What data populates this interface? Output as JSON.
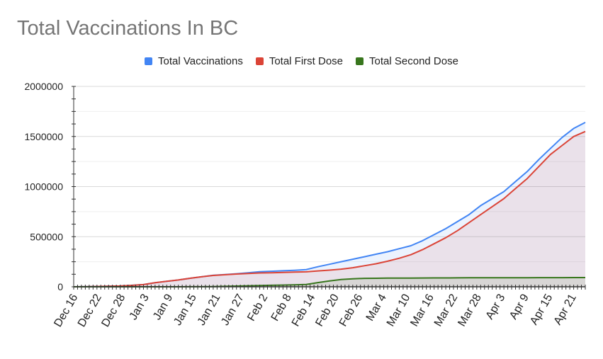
{
  "chart_data": {
    "type": "area",
    "title": "Total Vaccinations In BC",
    "xlabel": "",
    "ylabel": "",
    "ylim": [
      0,
      2000000
    ],
    "yticks": [
      0,
      500000,
      1000000,
      1500000,
      2000000
    ],
    "ytick_labels": [
      "0",
      "500000",
      "1000000",
      "1500000",
      "2000000"
    ],
    "grid": true,
    "legend_position": "top",
    "xtick_labels": [
      "Dec 16",
      "Dec 22",
      "Dec 28",
      "Jan 3",
      "Jan 9",
      "Jan 15",
      "Jan 21",
      "Jan 27",
      "Feb 2",
      "Feb 8",
      "Feb 14",
      "Feb 20",
      "Feb 26",
      "Mar 4",
      "Mar 10",
      "Mar 16",
      "Mar 22",
      "Mar 28",
      "Apr 3",
      "Apr 9",
      "Apr 15",
      "Apr 21"
    ],
    "x": [
      "Dec 16",
      "Dec 19",
      "Dec 22",
      "Dec 25",
      "Dec 28",
      "Dec 31",
      "Jan 3",
      "Jan 6",
      "Jan 9",
      "Jan 12",
      "Jan 15",
      "Jan 18",
      "Jan 21",
      "Jan 24",
      "Jan 27",
      "Jan 30",
      "Feb 2",
      "Feb 5",
      "Feb 8",
      "Feb 11",
      "Feb 14",
      "Feb 17",
      "Feb 20",
      "Feb 23",
      "Feb 26",
      "Mar 1",
      "Mar 4",
      "Mar 7",
      "Mar 10",
      "Mar 13",
      "Mar 16",
      "Mar 19",
      "Mar 22",
      "Mar 25",
      "Mar 28",
      "Mar 31",
      "Apr 3",
      "Apr 6",
      "Apr 9",
      "Apr 12",
      "Apr 15",
      "Apr 18",
      "Apr 21",
      "Apr 24",
      "Apr 26"
    ],
    "series": [
      {
        "name": "Total Vaccinations",
        "color": "#4285f4",
        "values": [
          0,
          1000,
          3000,
          5000,
          8000,
          14000,
          22000,
          40000,
          55000,
          68000,
          85000,
          100000,
          115000,
          122000,
          130000,
          140000,
          150000,
          155000,
          160000,
          165000,
          172000,
          200000,
          225000,
          250000,
          275000,
          300000,
          325000,
          350000,
          380000,
          410000,
          460000,
          520000,
          580000,
          650000,
          720000,
          810000,
          880000,
          950000,
          1050000,
          1150000,
          1270000,
          1380000,
          1490000,
          1580000,
          1640000
        ]
      },
      {
        "name": "Total First Dose",
        "color": "#db4437",
        "values": [
          0,
          1000,
          3000,
          5000,
          8000,
          14000,
          22000,
          40000,
          55000,
          68000,
          85000,
          100000,
          113000,
          120000,
          127000,
          133000,
          138000,
          140000,
          143000,
          146000,
          149000,
          158000,
          166000,
          176000,
          190000,
          210000,
          230000,
          255000,
          285000,
          320000,
          370000,
          430000,
          490000,
          560000,
          640000,
          720000,
          800000,
          880000,
          980000,
          1080000,
          1200000,
          1320000,
          1410000,
          1500000,
          1550000
        ]
      },
      {
        "name": "Total Second Dose",
        "color": "#38761d",
        "values": [
          0,
          0,
          0,
          0,
          0,
          0,
          0,
          0,
          0,
          0,
          500,
          1000,
          2000,
          4000,
          7000,
          10000,
          12000,
          15000,
          17000,
          20000,
          23000,
          42000,
          58000,
          72000,
          80000,
          84000,
          85000,
          86000,
          86500,
          87000,
          87500,
          88000,
          88500,
          89000,
          89500,
          90000,
          90200,
          90400,
          90600,
          90800,
          91000,
          91200,
          91500,
          91800,
          92000
        ]
      }
    ]
  }
}
